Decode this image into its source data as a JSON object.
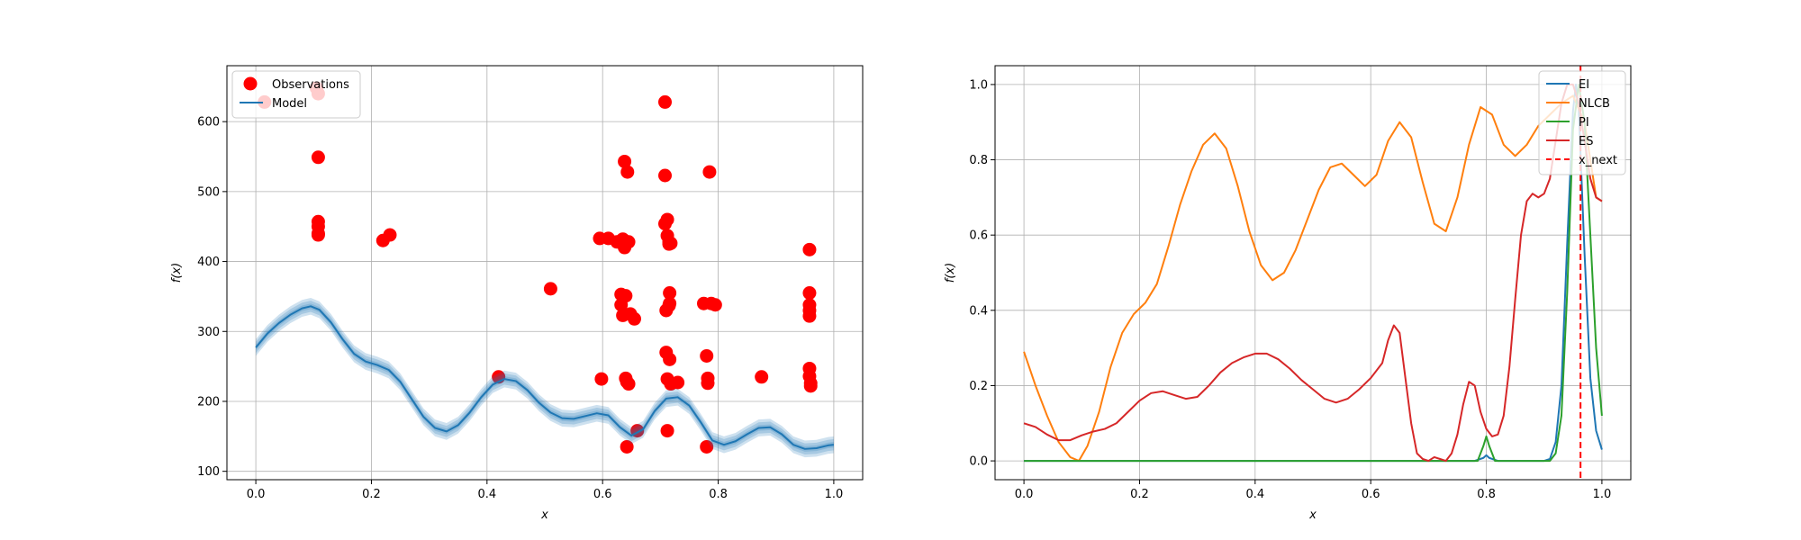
{
  "chart_data": [
    {
      "type": "scatter",
      "title": "",
      "xlabel": "x",
      "ylabel": "f(x)",
      "xlim": [
        -0.05,
        1.05
      ],
      "ylim": [
        88,
        680
      ],
      "xticks": [
        0.0,
        0.2,
        0.4,
        0.6,
        0.8,
        1.0
      ],
      "xtick_labels": [
        "0.0",
        "0.2",
        "0.4",
        "0.6",
        "0.8",
        "1.0"
      ],
      "yticks": [
        100,
        200,
        300,
        400,
        500,
        600
      ],
      "ytick_labels": [
        "100",
        "200",
        "300",
        "400",
        "500",
        "600"
      ],
      "grid": true,
      "legend": "top-left",
      "series": [
        {
          "name": "Observations",
          "kind": "points",
          "color": "#ff0000",
          "x": [
            0.015,
            0.105,
            0.108,
            0.108,
            0.108,
            0.108,
            0.108,
            0.108,
            0.22,
            0.232,
            0.42,
            0.51,
            0.595,
            0.598,
            0.61,
            0.625,
            0.632,
            0.632,
            0.635,
            0.635,
            0.638,
            0.638,
            0.638,
            0.64,
            0.64,
            0.642,
            0.642,
            0.643,
            0.645,
            0.645,
            0.648,
            0.655,
            0.66,
            0.708,
            0.708,
            0.708,
            0.71,
            0.71,
            0.712,
            0.712,
            0.712,
            0.712,
            0.715,
            0.715,
            0.715,
            0.716,
            0.716,
            0.716,
            0.718,
            0.718,
            0.73,
            0.775,
            0.78,
            0.78,
            0.782,
            0.782,
            0.785,
            0.788,
            0.795,
            0.875,
            0.958,
            0.958,
            0.958,
            0.958,
            0.958,
            0.958,
            0.958,
            0.96,
            0.96
          ],
          "y": [
            628,
            648,
            640,
            549,
            457,
            450,
            440,
            438,
            430,
            438,
            235,
            361,
            433,
            232,
            433,
            428,
            338,
            353,
            323,
            432,
            543,
            427,
            420,
            233,
            351,
            228,
            135,
            528,
            428,
            225,
            325,
            318,
            158,
            628,
            523,
            454,
            330,
            270,
            460,
            437,
            232,
            158,
            428,
            425,
            337,
            355,
            340,
            260,
            426,
            225,
            227,
            340,
            135,
            265,
            226,
            233,
            528,
            340,
            338,
            235,
            417,
            355,
            338,
            330,
            322,
            247,
            236,
            226,
            222
          ]
        },
        {
          "name": "Model",
          "kind": "line_with_band",
          "color": "#1f77b4",
          "x": [
            0.0,
            0.02,
            0.04,
            0.06,
            0.08,
            0.095,
            0.11,
            0.13,
            0.15,
            0.17,
            0.19,
            0.21,
            0.23,
            0.25,
            0.27,
            0.29,
            0.31,
            0.33,
            0.35,
            0.37,
            0.39,
            0.41,
            0.43,
            0.45,
            0.47,
            0.49,
            0.51,
            0.53,
            0.55,
            0.57,
            0.59,
            0.61,
            0.63,
            0.65,
            0.67,
            0.69,
            0.71,
            0.73,
            0.75,
            0.77,
            0.79,
            0.81,
            0.83,
            0.85,
            0.87,
            0.89,
            0.91,
            0.93,
            0.95,
            0.97,
            0.99,
            1.0
          ],
          "y": [
            277,
            297,
            312,
            324,
            333,
            336,
            331,
            313,
            289,
            268,
            257,
            252,
            245,
            228,
            203,
            178,
            162,
            157,
            166,
            184,
            206,
            224,
            232,
            229,
            216,
            198,
            184,
            176,
            175,
            179,
            183,
            180,
            163,
            151,
            160,
            186,
            204,
            206,
            194,
            170,
            144,
            138,
            143,
            153,
            162,
            163,
            153,
            138,
            132,
            133,
            137,
            138
          ],
          "band": 12
        }
      ]
    },
    {
      "type": "line",
      "title": "",
      "xlabel": "x",
      "ylabel": "f(x)",
      "xlim": [
        -0.05,
        1.05
      ],
      "ylim": [
        -0.05,
        1.05
      ],
      "xticks": [
        0.0,
        0.2,
        0.4,
        0.6,
        0.8,
        1.0
      ],
      "xtick_labels": [
        "0.0",
        "0.2",
        "0.4",
        "0.6",
        "0.8",
        "1.0"
      ],
      "yticks": [
        0.0,
        0.2,
        0.4,
        0.6,
        0.8,
        1.0
      ],
      "ytick_labels": [
        "0.0",
        "0.2",
        "0.4",
        "0.6",
        "0.8",
        "1.0"
      ],
      "grid": true,
      "legend": "top-right",
      "series": [
        {
          "name": "EI",
          "color": "#1f77b4",
          "x": [
            0.0,
            0.78,
            0.795,
            0.8,
            0.805,
            0.82,
            0.9,
            0.91,
            0.92,
            0.93,
            0.94,
            0.95,
            0.955,
            0.96,
            0.97,
            0.98,
            0.99,
            1.0
          ],
          "y": [
            0.0,
            0.0,
            0.008,
            0.015,
            0.008,
            0.0,
            0.0,
            0.005,
            0.05,
            0.2,
            0.58,
            0.93,
            1.0,
            0.93,
            0.55,
            0.22,
            0.08,
            0.03
          ]
        },
        {
          "name": "NLCB",
          "color": "#ff7f0e",
          "x": [
            0.0,
            0.02,
            0.04,
            0.06,
            0.08,
            0.095,
            0.11,
            0.13,
            0.15,
            0.17,
            0.19,
            0.21,
            0.23,
            0.25,
            0.27,
            0.29,
            0.31,
            0.33,
            0.35,
            0.37,
            0.39,
            0.41,
            0.43,
            0.45,
            0.47,
            0.49,
            0.51,
            0.53,
            0.55,
            0.57,
            0.59,
            0.61,
            0.63,
            0.65,
            0.67,
            0.69,
            0.71,
            0.73,
            0.75,
            0.77,
            0.79,
            0.81,
            0.83,
            0.85,
            0.87,
            0.89,
            0.91,
            0.93,
            0.95,
            0.97,
            0.99,
            1.0
          ],
          "y": [
            0.29,
            0.2,
            0.12,
            0.05,
            0.01,
            0.0,
            0.04,
            0.13,
            0.25,
            0.34,
            0.39,
            0.42,
            0.47,
            0.57,
            0.68,
            0.77,
            0.84,
            0.87,
            0.83,
            0.73,
            0.61,
            0.52,
            0.48,
            0.5,
            0.56,
            0.64,
            0.72,
            0.78,
            0.79,
            0.76,
            0.73,
            0.76,
            0.85,
            0.9,
            0.86,
            0.74,
            0.63,
            0.61,
            0.7,
            0.84,
            0.94,
            0.92,
            0.84,
            0.81,
            0.84,
            0.89,
            0.92,
            0.95,
            0.97,
            0.9,
            0.7,
            0.69
          ]
        },
        {
          "name": "PI",
          "color": "#2ca02c",
          "x": [
            0.0,
            0.785,
            0.795,
            0.8,
            0.805,
            0.815,
            0.91,
            0.92,
            0.93,
            0.94,
            0.95,
            0.96,
            0.97,
            0.98,
            0.99,
            1.0
          ],
          "y": [
            0.0,
            0.0,
            0.04,
            0.065,
            0.04,
            0.0,
            0.0,
            0.02,
            0.12,
            0.45,
            0.88,
            1.0,
            0.9,
            0.6,
            0.3,
            0.12
          ]
        },
        {
          "name": "ES",
          "color": "#d62728",
          "x": [
            0.0,
            0.02,
            0.04,
            0.06,
            0.08,
            0.1,
            0.12,
            0.14,
            0.16,
            0.18,
            0.2,
            0.22,
            0.24,
            0.26,
            0.28,
            0.3,
            0.32,
            0.34,
            0.36,
            0.38,
            0.4,
            0.42,
            0.44,
            0.46,
            0.48,
            0.5,
            0.52,
            0.54,
            0.56,
            0.58,
            0.6,
            0.62,
            0.63,
            0.64,
            0.65,
            0.66,
            0.67,
            0.68,
            0.69,
            0.7,
            0.71,
            0.72,
            0.73,
            0.74,
            0.75,
            0.76,
            0.77,
            0.78,
            0.79,
            0.8,
            0.81,
            0.82,
            0.83,
            0.84,
            0.85,
            0.86,
            0.87,
            0.88,
            0.89,
            0.9,
            0.91,
            0.92,
            0.93,
            0.94,
            0.95,
            0.96,
            0.97,
            0.98,
            0.99,
            1.0
          ],
          "y": [
            0.1,
            0.09,
            0.07,
            0.055,
            0.055,
            0.068,
            0.078,
            0.085,
            0.1,
            0.13,
            0.16,
            0.18,
            0.185,
            0.175,
            0.165,
            0.17,
            0.2,
            0.235,
            0.26,
            0.275,
            0.285,
            0.285,
            0.27,
            0.245,
            0.215,
            0.19,
            0.165,
            0.155,
            0.165,
            0.19,
            0.22,
            0.26,
            0.32,
            0.36,
            0.34,
            0.22,
            0.1,
            0.02,
            0.005,
            0.0,
            0.01,
            0.005,
            0.0,
            0.02,
            0.07,
            0.15,
            0.21,
            0.2,
            0.13,
            0.085,
            0.065,
            0.07,
            0.12,
            0.25,
            0.43,
            0.6,
            0.69,
            0.71,
            0.7,
            0.71,
            0.75,
            0.85,
            0.95,
            1.0,
            1.0,
            0.95,
            0.85,
            0.75,
            0.7,
            0.69
          ]
        }
      ],
      "vlines": [
        {
          "name": "x_next",
          "x": 0.963,
          "color": "#ff0000",
          "style": "dashed"
        }
      ]
    }
  ]
}
